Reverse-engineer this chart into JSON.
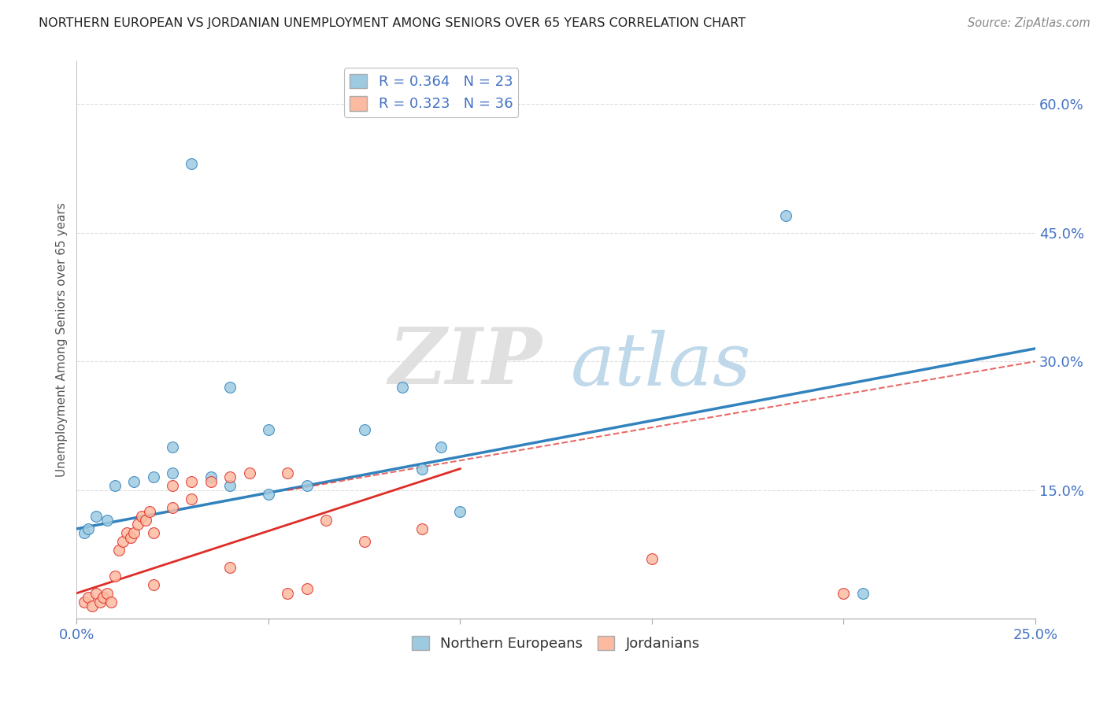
{
  "title": "NORTHERN EUROPEAN VS JORDANIAN UNEMPLOYMENT AMONG SENIORS OVER 65 YEARS CORRELATION CHART",
  "source": "Source: ZipAtlas.com",
  "ylabel": "Unemployment Among Seniors over 65 years",
  "xlabel": "",
  "xlim": [
    0.0,
    0.25
  ],
  "ylim": [
    0.0,
    0.65
  ],
  "xticks": [
    0.0,
    0.05,
    0.1,
    0.15,
    0.2,
    0.25
  ],
  "yticks": [
    0.0,
    0.15,
    0.3,
    0.45,
    0.6
  ],
  "blue_scatter": [
    [
      0.03,
      0.53
    ],
    [
      0.185,
      0.47
    ],
    [
      0.04,
      0.27
    ],
    [
      0.085,
      0.27
    ],
    [
      0.025,
      0.2
    ],
    [
      0.05,
      0.22
    ],
    [
      0.075,
      0.22
    ],
    [
      0.01,
      0.155
    ],
    [
      0.015,
      0.16
    ],
    [
      0.02,
      0.165
    ],
    [
      0.025,
      0.17
    ],
    [
      0.035,
      0.165
    ],
    [
      0.04,
      0.155
    ],
    [
      0.05,
      0.145
    ],
    [
      0.06,
      0.155
    ],
    [
      0.09,
      0.175
    ],
    [
      0.095,
      0.2
    ],
    [
      0.1,
      0.125
    ],
    [
      0.005,
      0.12
    ],
    [
      0.008,
      0.115
    ],
    [
      0.002,
      0.1
    ],
    [
      0.003,
      0.105
    ],
    [
      0.205,
      0.03
    ]
  ],
  "pink_scatter": [
    [
      0.002,
      0.02
    ],
    [
      0.003,
      0.025
    ],
    [
      0.004,
      0.015
    ],
    [
      0.005,
      0.03
    ],
    [
      0.006,
      0.02
    ],
    [
      0.007,
      0.025
    ],
    [
      0.008,
      0.03
    ],
    [
      0.009,
      0.02
    ],
    [
      0.01,
      0.05
    ],
    [
      0.011,
      0.08
    ],
    [
      0.012,
      0.09
    ],
    [
      0.013,
      0.1
    ],
    [
      0.014,
      0.095
    ],
    [
      0.015,
      0.1
    ],
    [
      0.016,
      0.11
    ],
    [
      0.017,
      0.12
    ],
    [
      0.018,
      0.115
    ],
    [
      0.019,
      0.125
    ],
    [
      0.02,
      0.1
    ],
    [
      0.025,
      0.13
    ],
    [
      0.03,
      0.14
    ],
    [
      0.025,
      0.155
    ],
    [
      0.03,
      0.16
    ],
    [
      0.035,
      0.16
    ],
    [
      0.04,
      0.165
    ],
    [
      0.045,
      0.17
    ],
    [
      0.055,
      0.17
    ],
    [
      0.02,
      0.04
    ],
    [
      0.04,
      0.06
    ],
    [
      0.065,
      0.115
    ],
    [
      0.075,
      0.09
    ],
    [
      0.09,
      0.105
    ],
    [
      0.15,
      0.07
    ],
    [
      0.055,
      0.03
    ],
    [
      0.06,
      0.035
    ],
    [
      0.2,
      0.03
    ]
  ],
  "blue_R": 0.364,
  "blue_N": 23,
  "pink_R": 0.323,
  "pink_N": 36,
  "blue_color": "#9ECAE1",
  "pink_color": "#FCBBA1",
  "blue_line_color": "#3182BD",
  "pink_line_color": "#DE2D26",
  "blue_reg": [
    0.0,
    0.25,
    0.105,
    0.315
  ],
  "pink_reg": [
    0.0,
    0.25,
    0.03,
    0.3
  ],
  "pink_dash_reg": [
    0.055,
    0.25,
    0.15,
    0.3
  ],
  "watermark_zip": "ZIP",
  "watermark_atlas": "atlas",
  "background_color": "#FFFFFF",
  "grid_color": "#CCCCCC"
}
